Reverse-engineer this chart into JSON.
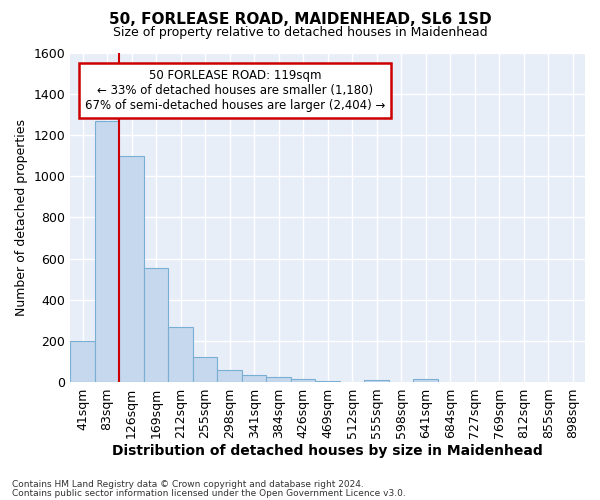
{
  "title": "50, FORLEASE ROAD, MAIDENHEAD, SL6 1SD",
  "subtitle": "Size of property relative to detached houses in Maidenhead",
  "xlabel": "Distribution of detached houses by size in Maidenhead",
  "ylabel": "Number of detached properties",
  "footer_line1": "Contains HM Land Registry data © Crown copyright and database right 2024.",
  "footer_line2": "Contains public sector information licensed under the Open Government Licence v3.0.",
  "bar_labels": [
    "41sqm",
    "83sqm",
    "126sqm",
    "169sqm",
    "212sqm",
    "255sqm",
    "298sqm",
    "341sqm",
    "384sqm",
    "426sqm",
    "469sqm",
    "512sqm",
    "555sqm",
    "598sqm",
    "641sqm",
    "684sqm",
    "727sqm",
    "769sqm",
    "812sqm",
    "855sqm",
    "898sqm"
  ],
  "bar_values": [
    200,
    1270,
    1100,
    555,
    270,
    125,
    60,
    35,
    25,
    15,
    5,
    0,
    10,
    0,
    15,
    0,
    0,
    0,
    0,
    0,
    0
  ],
  "bar_color": "#c5d8ee",
  "bar_edge_color": "#7aafd4",
  "background_color": "#ffffff",
  "plot_bg_color": "#e8eef8",
  "grid_color": "#ffffff",
  "vline_color": "#cc0000",
  "vline_bar_index": 1,
  "annotation_title": "50 FORLEASE ROAD: 119sqm",
  "annotation_line2": "← 33% of detached houses are smaller (1,180)",
  "annotation_line3": "67% of semi-detached houses are larger (2,404) →",
  "annotation_box_color": "#cc0000",
  "ylim": [
    0,
    1600
  ],
  "yticks": [
    0,
    200,
    400,
    600,
    800,
    1000,
    1200,
    1400,
    1600
  ],
  "title_fontsize": 11,
  "subtitle_fontsize": 9,
  "ylabel_fontsize": 9,
  "xlabel_fontsize": 10,
  "ytick_fontsize": 9,
  "xtick_fontsize": 9
}
